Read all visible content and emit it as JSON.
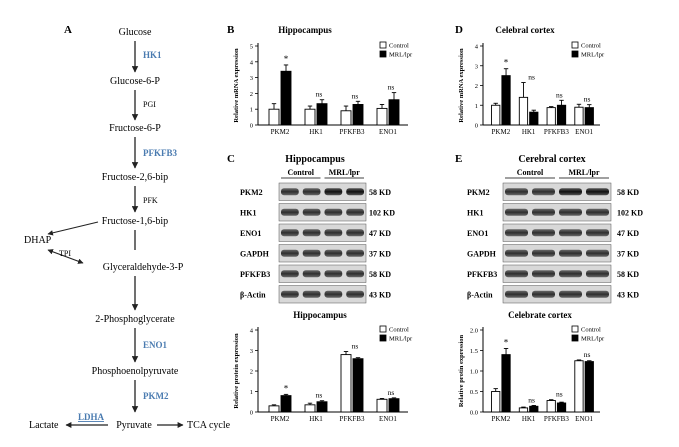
{
  "colors": {
    "accent": "#4a7bb0",
    "bar_dark": "#000000",
    "bar_light": "#ffffff"
  },
  "panel_a": {
    "letter": "A",
    "nodes": {
      "glucose": "Glucose",
      "hk1": "HK1",
      "g6p": "Glucose-6-P",
      "pgi": "PGI",
      "f6p": "Fructose-6-P",
      "pfkfb3": "PFKFB3",
      "f26bp": "Fructose-2,6-bip",
      "pfk": "PFK",
      "f16bp": "Fructose-1,6-bip",
      "dhap": "DHAP",
      "tpi": "TPI",
      "g3p": "Glyceraldehyde-3-P",
      "pg2": "2-Phosphoglycerate",
      "eno1": "ENO1",
      "pep": "Phosphoenolpyruvate",
      "pkm2": "PKM2",
      "lactate": "Lactate",
      "ldha": "LDHA",
      "pyruvate": "Pyruvate",
      "tca": "TCA cycle"
    }
  },
  "panel_c": {
    "letter": "C",
    "title": "Hippocampus",
    "groups": [
      "Control",
      "MRL/lpr"
    ],
    "rows": [
      {
        "name": "PKM2",
        "kd": "58 KD"
      },
      {
        "name": "HK1",
        "kd": "102 KD"
      },
      {
        "name": "ENO1",
        "kd": "47 KD"
      },
      {
        "name": "GAPDH",
        "kd": "37 KD"
      },
      {
        "name": "PFKFB3",
        "kd": "58 KD"
      },
      {
        "name": "β-Actin",
        "kd": "43 KD"
      }
    ]
  },
  "panel_e": {
    "letter": "E",
    "title": "Cerebral cortex",
    "groups": [
      "Control",
      "MRL/lpr"
    ],
    "rows": [
      {
        "name": "PKM2",
        "kd": "58 KD"
      },
      {
        "name": "HK1",
        "kd": "102 KD"
      },
      {
        "name": "ENO1",
        "kd": "47 KD"
      },
      {
        "name": "GAPDH",
        "kd": "37 KD"
      },
      {
        "name": "PFKFB3",
        "kd": "58 KD"
      },
      {
        "name": "β-Actin",
        "kd": "43 KD"
      }
    ]
  },
  "chart_data": [
    {
      "id": "B",
      "letter": "B",
      "type": "bar",
      "title": "Hippocampus",
      "ylabel": "Relative mRNA expression",
      "categories": [
        "PKM2",
        "HK1",
        "PFKFB3",
        "ENO1"
      ],
      "ylim": [
        0,
        5
      ],
      "yticks": [
        0,
        1,
        2,
        3,
        4,
        5
      ],
      "series": [
        {
          "name": "Control",
          "values": [
            1.0,
            1.0,
            0.9,
            1.05
          ],
          "errors": [
            0.35,
            0.2,
            0.3,
            0.25
          ]
        },
        {
          "name": "MRL/lpr",
          "values": [
            3.4,
            1.35,
            1.3,
            1.6
          ],
          "errors": [
            0.4,
            0.25,
            0.2,
            0.45
          ]
        }
      ],
      "annotations": [
        "*",
        "ns",
        "ns",
        "ns"
      ],
      "legend": "top-right"
    },
    {
      "id": "D",
      "letter": "D",
      "type": "bar",
      "title": "Celebral cortex",
      "ylabel": "Relative mRNA expression",
      "categories": [
        "PKM2",
        "HK1",
        "PFKFB3",
        "ENO1"
      ],
      "ylim": [
        0,
        4
      ],
      "yticks": [
        0,
        1,
        2,
        3,
        4
      ],
      "series": [
        {
          "name": "Control",
          "values": [
            1.0,
            1.4,
            0.88,
            0.9
          ],
          "errors": [
            0.1,
            0.75,
            0.05,
            0.15
          ]
        },
        {
          "name": "MRL/lpr",
          "values": [
            2.5,
            0.65,
            1.0,
            0.88
          ],
          "errors": [
            0.35,
            0.1,
            0.25,
            0.15
          ]
        }
      ],
      "annotations": [
        "*",
        "ns",
        "ns",
        "ns"
      ],
      "legend": "top-right"
    },
    {
      "id": "C2",
      "type": "bar",
      "title": "Hippocampus",
      "ylabel": "Relative protein expression",
      "categories": [
        "PKM2",
        "HK1",
        "PFKFB3",
        "ENO1"
      ],
      "ylim": [
        0,
        4
      ],
      "yticks": [
        0,
        1,
        2,
        3,
        4
      ],
      "series": [
        {
          "name": "Control",
          "values": [
            0.3,
            0.35,
            2.8,
            0.62
          ],
          "errors": [
            0.05,
            0.08,
            0.15,
            0.04
          ]
        },
        {
          "name": "MRL/lpr",
          "values": [
            0.8,
            0.5,
            2.6,
            0.65
          ],
          "errors": [
            0.06,
            0.05,
            0.05,
            0.04
          ]
        }
      ],
      "annotations": [
        "*",
        "ns",
        "ns",
        "ns"
      ],
      "legend": "top-right"
    },
    {
      "id": "E2",
      "type": "bar",
      "title": "Celebrate cortex",
      "ylabel": "Relative protin expression",
      "categories": [
        "PKM2",
        "HK1",
        "PFKFB3",
        "ENO1"
      ],
      "ylim": [
        0,
        2
      ],
      "yticks": [
        0.0,
        0.5,
        1.0,
        1.5,
        2.0
      ],
      "series": [
        {
          "name": "Control",
          "values": [
            0.5,
            0.1,
            0.28,
            1.25
          ],
          "errors": [
            0.07,
            0.02,
            0.02,
            0.02
          ]
        },
        {
          "name": "MRL/lpr",
          "values": [
            1.4,
            0.14,
            0.22,
            1.23
          ],
          "errors": [
            0.15,
            0.02,
            0.02,
            0.02
          ]
        }
      ],
      "annotations": [
        "*",
        "ns",
        "ns",
        "ns"
      ],
      "legend": "top-right"
    }
  ]
}
